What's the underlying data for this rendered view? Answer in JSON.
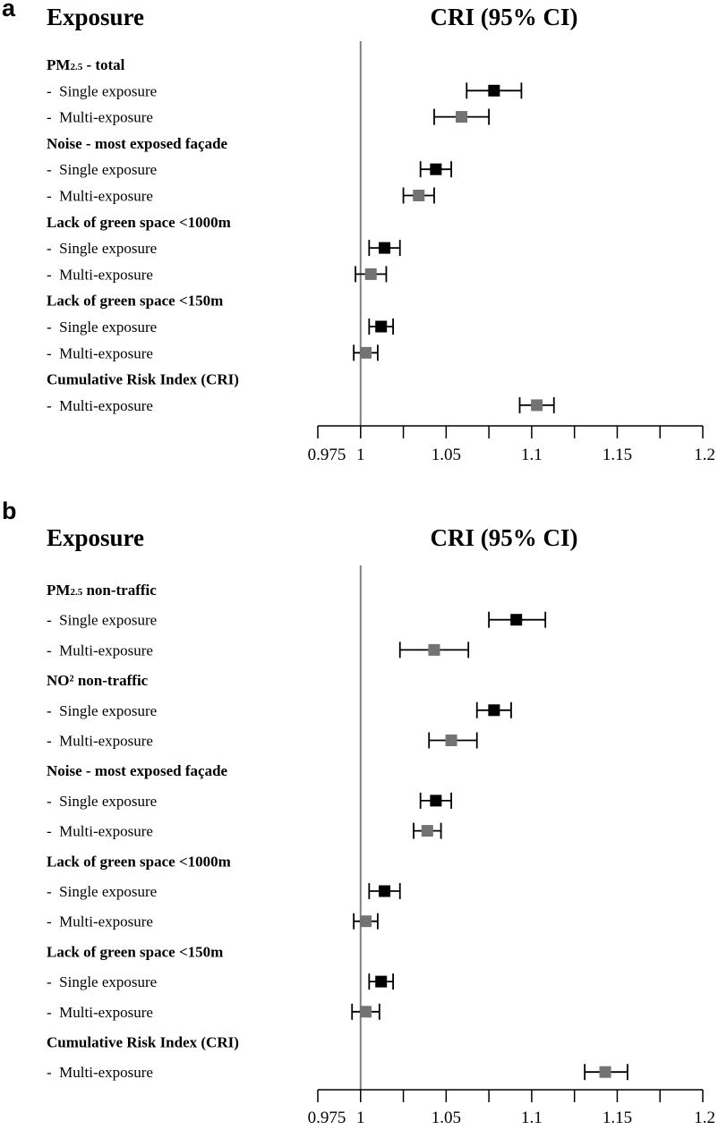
{
  "chart_data": [
    {
      "panel_label": "a",
      "type": "forest",
      "left_header": "Exposure",
      "right_header": "CRI (95% CI)",
      "xlim": [
        0.975,
        1.2
      ],
      "xticks": [
        {
          "value": 0.975,
          "label": "0.975"
        },
        {
          "value": 1,
          "label": "1"
        },
        {
          "value": 1.025,
          "label": ""
        },
        {
          "value": 1.05,
          "label": "1.05"
        },
        {
          "value": 1.075,
          "label": ""
        },
        {
          "value": 1.1,
          "label": "1.1"
        },
        {
          "value": 1.125,
          "label": ""
        },
        {
          "value": 1.15,
          "label": "1.15"
        },
        {
          "value": 1.175,
          "label": ""
        },
        {
          "value": 1.2,
          "label": "1.2"
        }
      ],
      "reference_line": 1,
      "colors": {
        "single": "#000000",
        "multi": "#737373"
      },
      "rows": [
        {
          "kind": "group",
          "label": "PM",
          "sub": "2.5",
          "suffix": " - total"
        },
        {
          "kind": "item",
          "label": "-  Single exposure",
          "series": "single",
          "est": 1.078,
          "lo": 1.062,
          "hi": 1.094
        },
        {
          "kind": "item",
          "label": "-  Multi-exposure",
          "series": "multi",
          "est": 1.059,
          "lo": 1.043,
          "hi": 1.075
        },
        {
          "kind": "group",
          "label": "Noise - most exposed façade"
        },
        {
          "kind": "item",
          "label": "-  Single exposure",
          "series": "single",
          "est": 1.044,
          "lo": 1.035,
          "hi": 1.053
        },
        {
          "kind": "item",
          "label": "-  Multi-exposure",
          "series": "multi",
          "est": 1.034,
          "lo": 1.025,
          "hi": 1.043
        },
        {
          "kind": "group",
          "label": "Lack of green space <1000m"
        },
        {
          "kind": "item",
          "label": "-  Single exposure",
          "series": "single",
          "est": 1.014,
          "lo": 1.005,
          "hi": 1.023
        },
        {
          "kind": "item",
          "label": "-  Multi-exposure",
          "series": "multi",
          "est": 1.006,
          "lo": 0.997,
          "hi": 1.015
        },
        {
          "kind": "group",
          "label": "Lack of green space <150m"
        },
        {
          "kind": "item",
          "label": "-  Single exposure",
          "series": "single",
          "est": 1.012,
          "lo": 1.005,
          "hi": 1.019
        },
        {
          "kind": "item",
          "label": "-  Multi-exposure",
          "series": "multi",
          "est": 1.003,
          "lo": 0.996,
          "hi": 1.01
        },
        {
          "kind": "group",
          "label": "Cumulative Risk Index (CRI)"
        },
        {
          "kind": "item",
          "label": "-  Multi-exposure",
          "series": "multi",
          "est": 1.103,
          "lo": 1.093,
          "hi": 1.113
        }
      ]
    },
    {
      "panel_label": "b",
      "type": "forest",
      "left_header": "Exposure",
      "right_header": "CRI (95% CI)",
      "xlim": [
        0.975,
        1.2
      ],
      "xticks": [
        {
          "value": 0.975,
          "label": "0.975"
        },
        {
          "value": 1,
          "label": "1"
        },
        {
          "value": 1.025,
          "label": ""
        },
        {
          "value": 1.05,
          "label": "1.05"
        },
        {
          "value": 1.075,
          "label": ""
        },
        {
          "value": 1.1,
          "label": "1.1"
        },
        {
          "value": 1.125,
          "label": ""
        },
        {
          "value": 1.15,
          "label": "1.15"
        },
        {
          "value": 1.175,
          "label": ""
        },
        {
          "value": 1.2,
          "label": "1.2"
        }
      ],
      "reference_line": 1,
      "colors": {
        "single": "#000000",
        "multi": "#737373"
      },
      "rows": [
        {
          "kind": "group",
          "label": "PM",
          "sub": "2.5",
          "suffix": " non-traffic"
        },
        {
          "kind": "item",
          "label": "-  Single exposure",
          "series": "single",
          "est": 1.091,
          "lo": 1.075,
          "hi": 1.108
        },
        {
          "kind": "item",
          "label": "-  Multi-exposure",
          "series": "multi",
          "est": 1.043,
          "lo": 1.023,
          "hi": 1.063
        },
        {
          "kind": "group",
          "label": "NO² non-traffic"
        },
        {
          "kind": "item",
          "label": "-  Single exposure",
          "series": "single",
          "est": 1.078,
          "lo": 1.068,
          "hi": 1.088
        },
        {
          "kind": "item",
          "label": "-  Multi-exposure",
          "series": "multi",
          "est": 1.053,
          "lo": 1.04,
          "hi": 1.068
        },
        {
          "kind": "group",
          "label": "Noise - most exposed façade"
        },
        {
          "kind": "item",
          "label": "-  Single exposure",
          "series": "single",
          "est": 1.044,
          "lo": 1.035,
          "hi": 1.053
        },
        {
          "kind": "item",
          "label": "-  Multi-exposure",
          "series": "multi",
          "est": 1.039,
          "lo": 1.031,
          "hi": 1.047
        },
        {
          "kind": "group",
          "label": "Lack of green space <1000m"
        },
        {
          "kind": "item",
          "label": "-  Single exposure",
          "series": "single",
          "est": 1.014,
          "lo": 1.005,
          "hi": 1.023
        },
        {
          "kind": "item",
          "label": "-  Multi-exposure",
          "series": "multi",
          "est": 1.003,
          "lo": 0.996,
          "hi": 1.01
        },
        {
          "kind": "group",
          "label": "Lack of green space <150m"
        },
        {
          "kind": "item",
          "label": "-  Single exposure",
          "series": "single",
          "est": 1.012,
          "lo": 1.005,
          "hi": 1.019
        },
        {
          "kind": "item",
          "label": "-  Multi-exposure",
          "series": "multi",
          "est": 1.003,
          "lo": 0.995,
          "hi": 1.011
        },
        {
          "kind": "group",
          "label": "Cumulative Risk Index (CRI)"
        },
        {
          "kind": "item",
          "label": "-  Multi-exposure",
          "series": "multi",
          "est": 1.143,
          "lo": 1.131,
          "hi": 1.156
        }
      ]
    }
  ]
}
